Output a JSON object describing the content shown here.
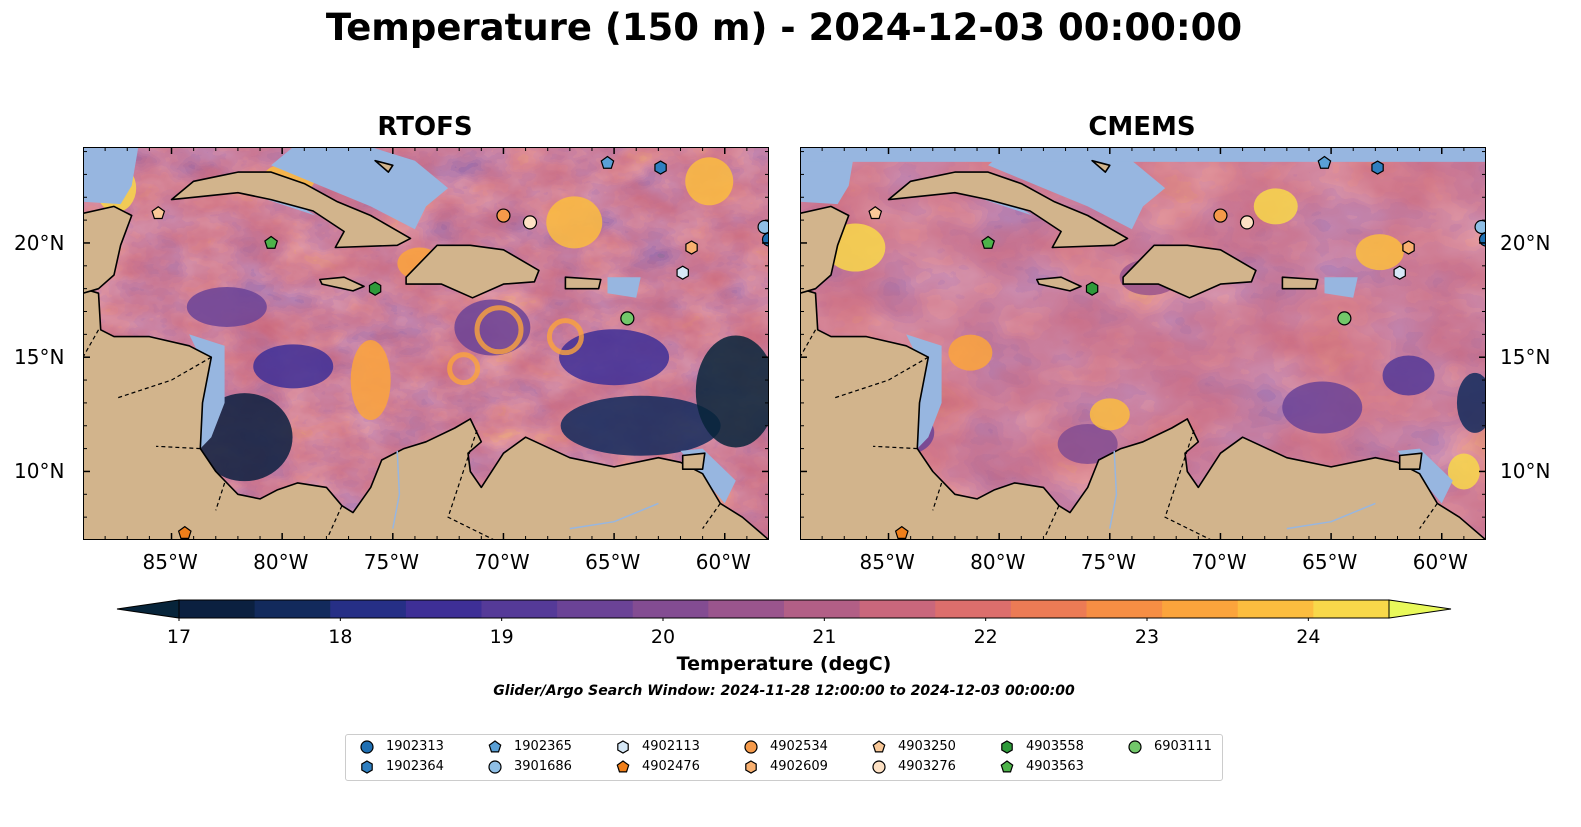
{
  "title": "Temperature (150 m) - 2024-12-03 00:00:00",
  "panels": [
    {
      "name": "RTOFS"
    },
    {
      "name": "CMEMS"
    }
  ],
  "map_extent": {
    "lon": [
      -89,
      -58
    ],
    "lat": [
      7,
      24.2
    ]
  },
  "lon_ticks": [
    "85°W",
    "80°W",
    "75°W",
    "70°W",
    "65°W",
    "60°W"
  ],
  "lat_ticks": [
    "20°N",
    "15°N",
    "10°N"
  ],
  "colorbar": {
    "label": "Temperature (degC)",
    "ticks": [
      "17",
      "18",
      "19",
      "20",
      "21",
      "22",
      "23",
      "24"
    ],
    "range": [
      17,
      24.5
    ],
    "colors": [
      "#0b2040",
      "#122a5c",
      "#262f86",
      "#3e2f96",
      "#553a98",
      "#6b4396",
      "#834c92",
      "#9a558d",
      "#b25f86",
      "#c9677c",
      "#dc6e6c",
      "#ec7b55",
      "#f68e44",
      "#fba43c",
      "#fcbd3f",
      "#f8d84a"
    ],
    "under_color": "#07243a",
    "over_color": "#e9f95a"
  },
  "search_window": "Glider/Argo Search Window: 2024-11-28 12:00:00 to 2024-12-03 00:00:00",
  "legend": [
    {
      "id": "1902313",
      "marker": "circle",
      "color": "#1f6fb2"
    },
    {
      "id": "1902364",
      "marker": "hexagon",
      "color": "#2f7fc0"
    },
    {
      "id": "1902365",
      "marker": "pentagon",
      "color": "#5aa0d6"
    },
    {
      "id": "3901686",
      "marker": "circle",
      "color": "#8fbfe6"
    },
    {
      "id": "4902113",
      "marker": "hexagon",
      "color": "#d6e8f7"
    },
    {
      "id": "4902476",
      "marker": "pentagon",
      "color": "#f07f1a"
    },
    {
      "id": "4902534",
      "marker": "circle",
      "color": "#f59a4a"
    },
    {
      "id": "4902609",
      "marker": "hexagon",
      "color": "#f8b070"
    },
    {
      "id": "4903250",
      "marker": "pentagon",
      "color": "#f9c898"
    },
    {
      "id": "4903276",
      "marker": "circle",
      "color": "#fde1c4"
    },
    {
      "id": "4903558",
      "marker": "hexagon",
      "color": "#2e9a3a"
    },
    {
      "id": "4903563",
      "marker": "pentagon",
      "color": "#4db34a"
    },
    {
      "id": "6903111",
      "marker": "circle",
      "color": "#72c86a"
    }
  ],
  "floats": [
    {
      "id": "1902313",
      "lon": -58.0,
      "lat": 20.15
    },
    {
      "id": "1902364",
      "lon": -62.9,
      "lat": 23.3
    },
    {
      "id": "1902365",
      "lon": -65.3,
      "lat": 23.5
    },
    {
      "id": "3901686",
      "lon": -58.2,
      "lat": 20.7
    },
    {
      "id": "4902113",
      "lon": -61.9,
      "lat": 18.7
    },
    {
      "id": "4902476",
      "lon": -84.4,
      "lat": 7.3
    },
    {
      "id": "4902534",
      "lon": -70.0,
      "lat": 21.2
    },
    {
      "id": "4902609",
      "lon": -61.5,
      "lat": 19.8
    },
    {
      "id": "4903250",
      "lon": -85.6,
      "lat": 21.3
    },
    {
      "id": "4903276",
      "lon": -68.8,
      "lat": 20.9
    },
    {
      "id": "4903558",
      "lon": -75.8,
      "lat": 18.0
    },
    {
      "id": "4903563",
      "lon": -80.5,
      "lat": 20.0
    },
    {
      "id": "6903111",
      "lon": -64.4,
      "lat": 16.7
    }
  ],
  "colors": {
    "land": "#d2b48c",
    "shallow_water": "#97b6e0",
    "deep": "#07243a"
  }
}
